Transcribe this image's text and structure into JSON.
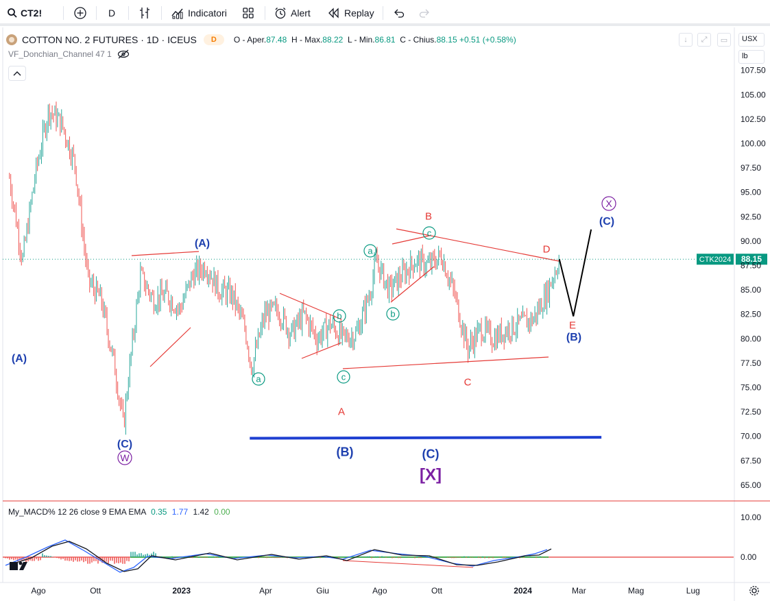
{
  "toolbar": {
    "symbol": "CT2!",
    "interval": "D",
    "indicators_label": "Indicatori",
    "alert_label": "Alert",
    "replay_label": "Replay"
  },
  "legend": {
    "title": "COTTON NO. 2 FUTURES · 1D · ICEUS",
    "badge": "D",
    "open_label": "O - Aper.",
    "open": "87.48",
    "high_label": "H - Max.",
    "high": "88.22",
    "low_label": "L - Min.",
    "low": "86.81",
    "close_label": "C - Chius.",
    "close": "88.15",
    "change": "+0.51",
    "change_pct": "(+0.58%)",
    "indicator": "VF_Donchian_Channel 47 1"
  },
  "price_scale": {
    "currency": "USX",
    "unit": "lb",
    "last_price_label": "CTK2024",
    "last_price": "88.15"
  },
  "macd_legend": {
    "label": "My_MACD% 12 26 close 9 EMA EMA",
    "v1": "0.35",
    "v2": "1.77",
    "v3": "1.42",
    "v4": "0.00"
  },
  "chart_data": [
    {
      "type": "candlestick",
      "title": "COTTON NO. 2 FUTURES · 1D · ICEUS",
      "y_ticks": [
        "107.50",
        "105.00",
        "102.50",
        "100.00",
        "97.50",
        "95.00",
        "92.50",
        "90.00",
        "87.50",
        "85.00",
        "82.50",
        "80.00",
        "77.50",
        "75.00",
        "72.50",
        "70.00",
        "67.50",
        "65.00"
      ],
      "x_ticks": [
        "Ago",
        "Ott",
        "2023",
        "Apr",
        "Giu",
        "Ago",
        "Ott",
        "2024",
        "Mar",
        "Mag",
        "Lug"
      ],
      "ylim": [
        64,
        108.5
      ],
      "last_price": 88.15,
      "ohlc_last": {
        "open": 87.48,
        "high": 88.22,
        "low": 86.81,
        "close": 88.15
      },
      "approx_close_path": [
        {
          "x": "2022-07-01",
          "y": 96.5
        },
        {
          "x": "2022-07-15",
          "y": 88.0
        },
        {
          "x": "2022-07-29",
          "y": 97.0
        },
        {
          "x": "2022-08-12",
          "y": 103.5
        },
        {
          "x": "2022-08-26",
          "y": 102.0
        },
        {
          "x": "2022-09-09",
          "y": 98.0
        },
        {
          "x": "2022-09-23",
          "y": 86.0
        },
        {
          "x": "2022-10-07",
          "y": 84.0
        },
        {
          "x": "2022-10-21",
          "y": 77.5
        },
        {
          "x": "2022-10-31",
          "y": 71.0
        },
        {
          "x": "2022-11-04",
          "y": 75.0
        },
        {
          "x": "2022-11-18",
          "y": 86.5
        },
        {
          "x": "2022-12-02",
          "y": 84.0
        },
        {
          "x": "2022-12-16",
          "y": 84.5
        },
        {
          "x": "2022-12-30",
          "y": 83.0
        },
        {
          "x": "2023-01-13",
          "y": 86.5
        },
        {
          "x": "2023-01-27",
          "y": 87.5
        },
        {
          "x": "2023-02-10",
          "y": 85.0
        },
        {
          "x": "2023-02-24",
          "y": 84.5
        },
        {
          "x": "2023-03-10",
          "y": 81.0
        },
        {
          "x": "2023-03-17",
          "y": 77.0
        },
        {
          "x": "2023-03-31",
          "y": 82.5
        },
        {
          "x": "2023-04-14",
          "y": 83.0
        },
        {
          "x": "2023-04-28",
          "y": 80.5
        },
        {
          "x": "2023-05-12",
          "y": 82.5
        },
        {
          "x": "2023-05-26",
          "y": 80.0
        },
        {
          "x": "2023-06-09",
          "y": 81.5
        },
        {
          "x": "2023-06-23",
          "y": 80.0
        },
        {
          "x": "2023-07-07",
          "y": 80.5
        },
        {
          "x": "2023-07-21",
          "y": 84.5
        },
        {
          "x": "2023-07-28",
          "y": 88.0
        },
        {
          "x": "2023-08-11",
          "y": 85.0
        },
        {
          "x": "2023-08-25",
          "y": 86.5
        },
        {
          "x": "2023-09-08",
          "y": 88.0
        },
        {
          "x": "2023-09-22",
          "y": 87.5
        },
        {
          "x": "2023-10-06",
          "y": 88.5
        },
        {
          "x": "2023-10-20",
          "y": 84.5
        },
        {
          "x": "2023-11-03",
          "y": 79.0
        },
        {
          "x": "2023-11-17",
          "y": 81.0
        },
        {
          "x": "2023-12-01",
          "y": 80.0
        },
        {
          "x": "2023-12-15",
          "y": 81.0
        },
        {
          "x": "2023-12-29",
          "y": 81.5
        },
        {
          "x": "2024-01-12",
          "y": 82.0
        },
        {
          "x": "2024-01-26",
          "y": 84.5
        },
        {
          "x": "2024-02-09",
          "y": 88.15
        }
      ],
      "projection": [
        {
          "x": "2024-02-09",
          "y": 88.15
        },
        {
          "x": "2024-02-24",
          "y": 82.3
        },
        {
          "x": "2024-03-14",
          "y": 91.2
        }
      ],
      "support_line": {
        "x": [
          "2023-03-15",
          "2024-03-25"
        ],
        "y": [
          69.8,
          69.9
        ]
      },
      "annotations": [
        {
          "text": "(A)",
          "color": "#1e40af"
        },
        {
          "text": "(A)",
          "color": "#1e40af"
        },
        {
          "text": "(C)",
          "color": "#1e40af"
        },
        {
          "text": "W",
          "color": "#7b1fa2",
          "circled": true
        },
        {
          "text": "a",
          "color": "#089981",
          "circled": true
        },
        {
          "text": "c",
          "color": "#089981",
          "circled": true
        },
        {
          "text": "b",
          "color": "#089981",
          "circled": true
        },
        {
          "text": "a",
          "color": "#089981",
          "circled": true
        },
        {
          "text": "b",
          "color": "#089981",
          "circled": true
        },
        {
          "text": "c",
          "color": "#089981",
          "circled": true
        },
        {
          "text": "A",
          "color": "#e53935"
        },
        {
          "text": "B",
          "color": "#e53935"
        },
        {
          "text": "C",
          "color": "#e53935"
        },
        {
          "text": "D",
          "color": "#e53935"
        },
        {
          "text": "E",
          "color": "#e53935"
        },
        {
          "text": "(B)",
          "color": "#1e40af"
        },
        {
          "text": "(B)",
          "color": "#1e40af"
        },
        {
          "text": "(C)",
          "color": "#1e40af"
        },
        {
          "text": "(C)",
          "color": "#1e40af"
        },
        {
          "text": "X",
          "color": "#7b1fa2",
          "circled": true
        },
        {
          "text": "[X]",
          "color": "#7b1fa2"
        }
      ]
    },
    {
      "type": "line",
      "title": "My_MACD% 12 26 close 9 EMA EMA",
      "y_ticks": [
        "10.00",
        "0.00"
      ],
      "series_colors": {
        "macd": "#2962ff",
        "signal": "#131722",
        "hist_pos": "#26a69a",
        "hist_neg": "#ef5350",
        "zero": "#e53935"
      }
    }
  ],
  "colors": {
    "up": "#26a69a",
    "down": "#ef5350",
    "trend_lines": "#e53935",
    "support": "#1e3fd1",
    "projection": "#000000",
    "last_price_badge": "#089981"
  }
}
